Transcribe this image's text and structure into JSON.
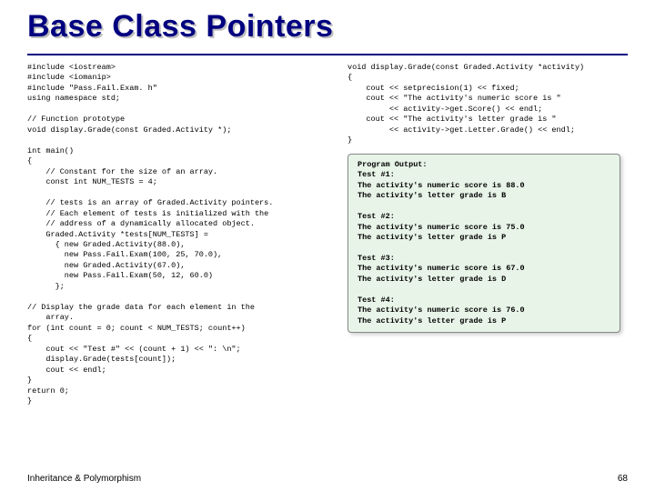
{
  "title": "Base Class Pointers",
  "code_left": "#include <iostream>\n#include <iomanip>\n#include \"Pass.Fail.Exam. h\"\nusing namespace std;\n\n// Function prototype\nvoid display.Grade(const Graded.Activity *);\n\nint main()\n{\n    // Constant for the size of an array.\n    const int NUM_TESTS = 4;\n\n    // tests is an array of Graded.Activity pointers.\n    // Each element of tests is initialized with the\n    // address of a dynamically allocated object.\n    Graded.Activity *tests[NUM_TESTS] =\n      { new Graded.Activity(88.0),\n        new Pass.Fail.Exam(100, 25, 70.0),\n        new Graded.Activity(67.0),\n        new Pass.Fail.Exam(50, 12, 60.0)\n      };\n\n// Display the grade data for each element in the\n    array.\nfor (int count = 0; count < NUM_TESTS; count++)\n{\n    cout << \"Test #\" << (count + 1) << \": \\n\";\n    display.Grade(tests[count]);\n    cout << endl;\n}\nreturn 0;\n}",
  "code_right": "void display.Grade(const Graded.Activity *activity)\n{\n    cout << setprecision(1) << fixed;\n    cout << \"The activity's numeric score is \"\n         << activity->get.Score() << endl;\n    cout << \"The activity's letter grade is \"\n         << activity->get.Letter.Grade() << endl;\n}",
  "output": "Program Output:\nTest #1:\nThe activity's numeric score is 88.0\nThe activity's letter grade is B\n\nTest #2:\nThe activity's numeric score is 75.0\nThe activity's letter grade is P\n\nTest #3:\nThe activity's numeric score is 67.0\nThe activity's letter grade is D\n\nTest #4:\nThe activity's numeric score is 76.0\nThe activity's letter grade is P",
  "footer": "Inheritance & Polymorphism",
  "page_num": "68",
  "colors": {
    "title_color": "#000080",
    "title_shadow": "#c0c0c0",
    "output_bg": "#e8f4e8",
    "output_border": "#888888"
  }
}
